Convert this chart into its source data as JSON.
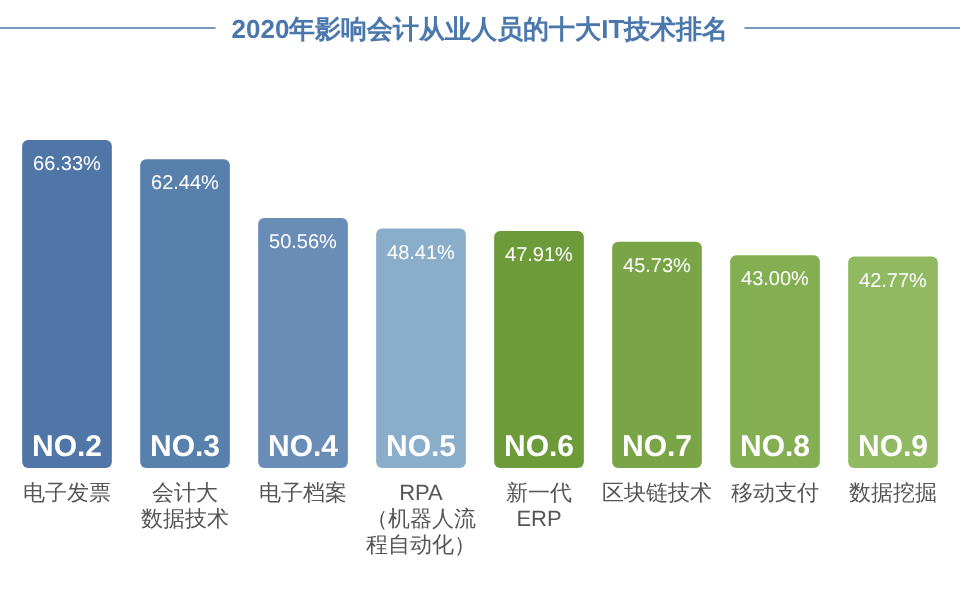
{
  "chart_data": {
    "type": "bar",
    "title": "2020年影响会计从业人员的十大IT技术排名",
    "categories": [
      "电子发票",
      "会计大数据技术",
      "电子档案",
      "RPA\n（机器人流程自动化）",
      "新一代\nERP",
      "区块链技术",
      "移动支付",
      "数据挖掘"
    ],
    "values": [
      66.33,
      62.44,
      50.56,
      48.41,
      47.91,
      45.73,
      43.0,
      42.77
    ],
    "value_labels": [
      "66.33%",
      "62.44%",
      "50.56%",
      "48.41%",
      "47.91%",
      "45.73%",
      "43.00%",
      "42.77%"
    ],
    "colors": [
      "#4f76a6",
      "#5880ad",
      "#6a8db8",
      "#8aadca",
      "#6e9b3a",
      "#79a546",
      "#84ae52",
      "#91b962"
    ],
    "annotations": [
      "NO.2",
      "NO.3",
      "NO.4",
      "NO.5",
      "NO.6",
      "NO.7",
      "NO.8",
      "NO.9"
    ]
  }
}
